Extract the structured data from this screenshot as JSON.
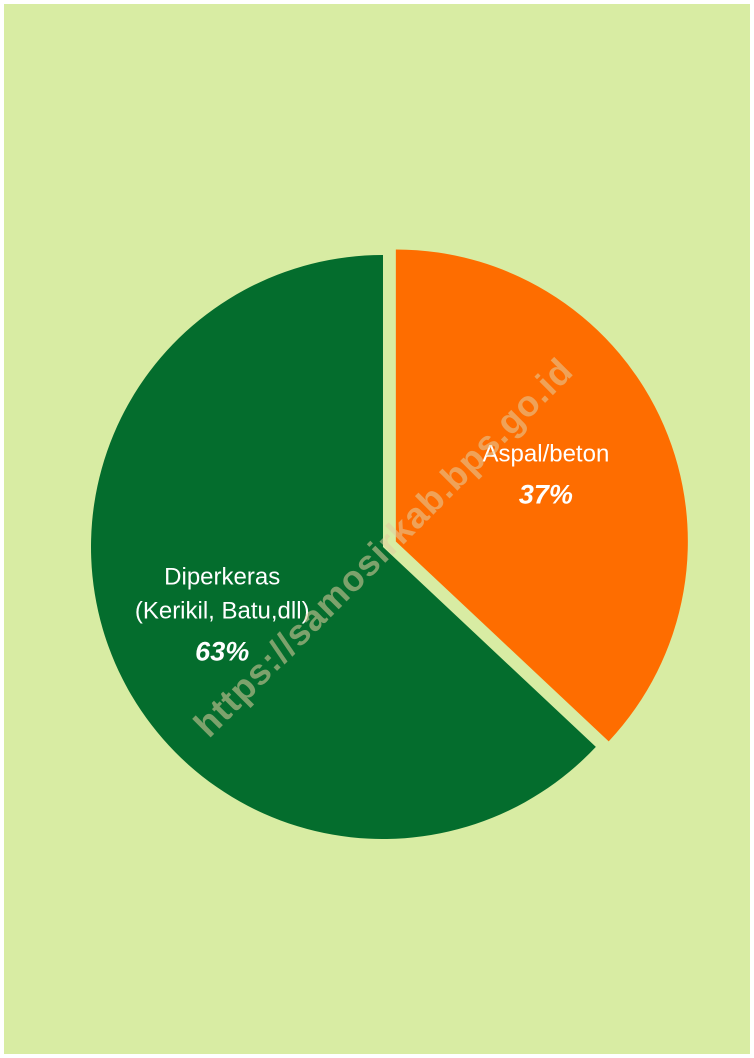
{
  "colors": {
    "background": "#d8eca3",
    "green": "#046d2d",
    "orange": "#fe6d00"
  },
  "watermark": "https://samosirkab.bps.go.id",
  "chart_data": {
    "type": "pie",
    "title": "",
    "slices": [
      {
        "label_lines": [
          "Diperkeras",
          "(Kerikil, Batu,dll)"
        ],
        "value": 63,
        "value_label": "63%",
        "color": "#046d2d",
        "exploded": false
      },
      {
        "label_lines": [
          "Aspal/beton"
        ],
        "value": 37,
        "value_label": "37%",
        "color": "#fe6d00",
        "exploded": true
      }
    ]
  }
}
